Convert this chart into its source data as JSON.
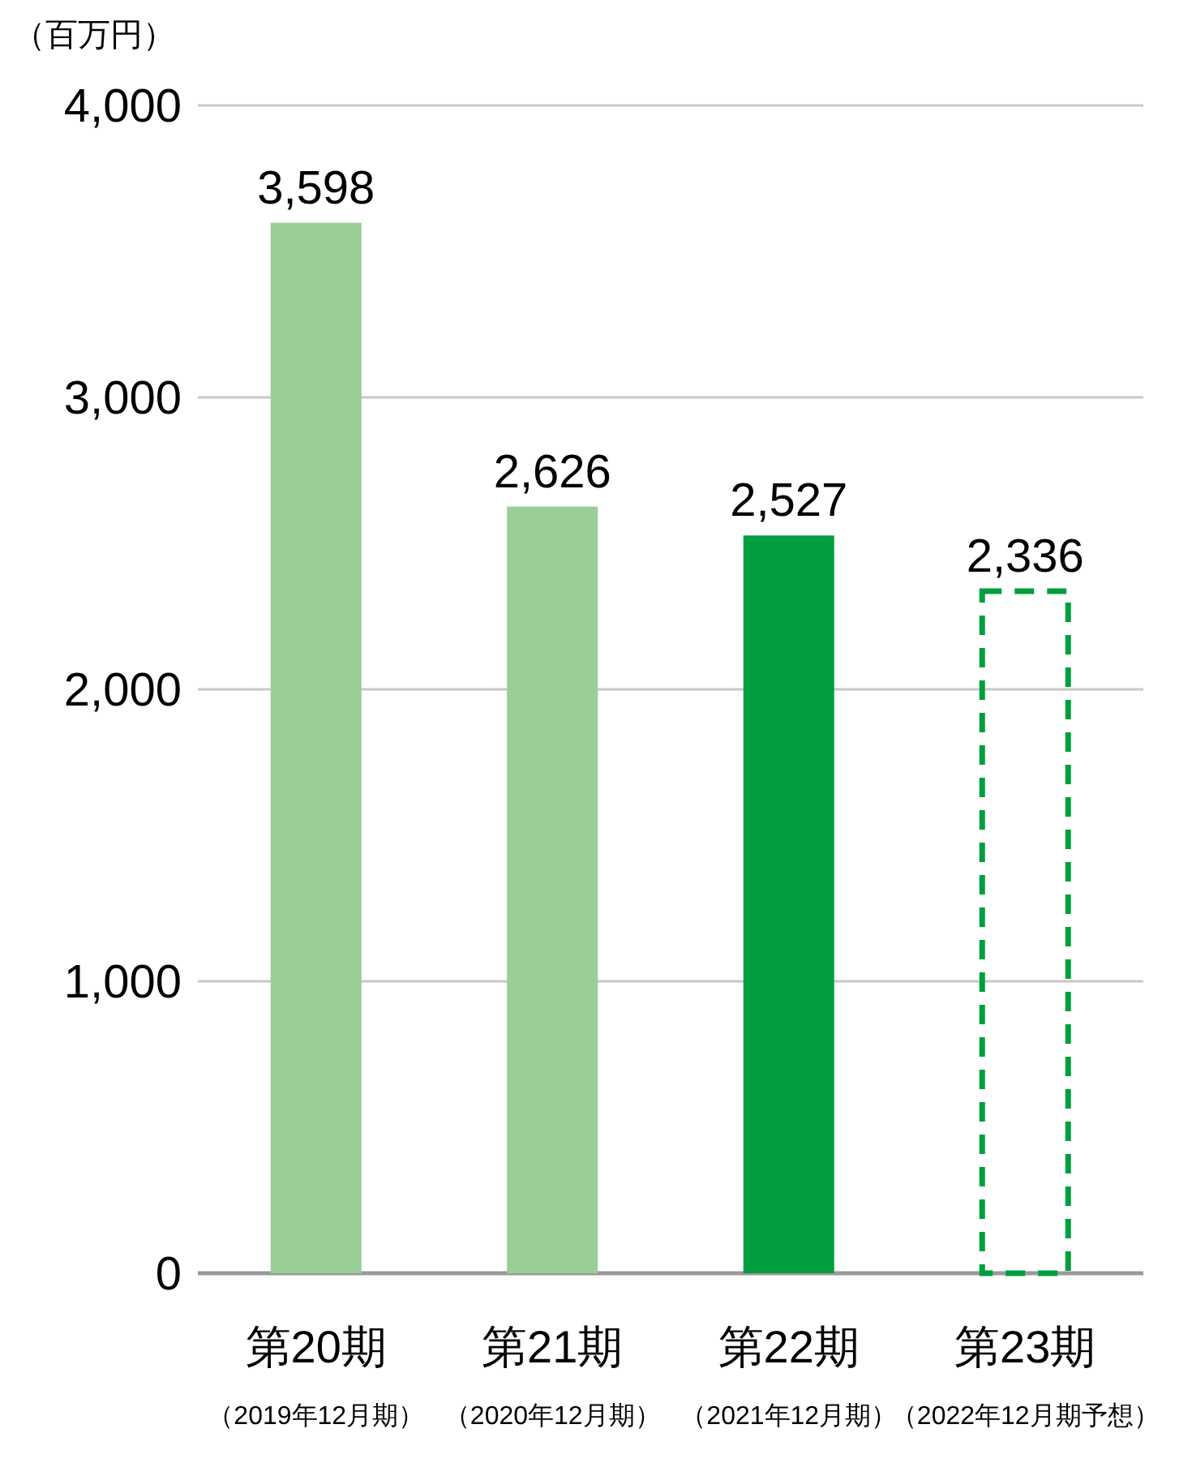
{
  "chart_data": {
    "type": "bar",
    "ylabel": "（百万円）",
    "categories": [
      "第20期（2019年12月期）",
      "第21期（2020年12月期）",
      "第22期（2021年12月期）",
      "第23期（2022年12月期予想）"
    ],
    "stacked": true,
    "series": [
      {
        "colors": [
          "#99cf97",
          "#99cf97",
          "#009e3f",
          null
        ],
        "values": [
          3598,
          2626,
          2527,
          null
        ],
        "value_labels": [
          "3,598",
          "2,626",
          "2,527",
          null
        ]
      },
      {
        "color": "#009e3f",
        "line_style": "dashed",
        "values": [
          null,
          null,
          null,
          2336
        ],
        "value_labels": [
          null,
          null,
          null,
          "2,336"
        ]
      }
    ],
    "ylim": [
      0,
      4000
    ],
    "yticks": [
      0,
      {
        "value": 1000,
        "label": "1,000"
      },
      {
        "value": 2000,
        "label": "2,000"
      },
      {
        "value": 3000,
        "label": "3,000"
      },
      {
        "value": 4000,
        "label": "4,000"
      }
    ],
    "grid": "y"
  }
}
